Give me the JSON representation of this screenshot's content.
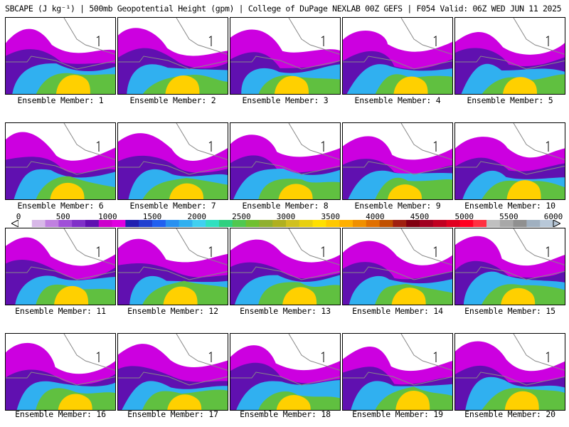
{
  "title": "SBCAPE (J kg⁻¹) | 500mb Geopotential Height (gpm) | College of DuPage NEXLAB 00Z GEFS | F054 Valid: 06Z WED JUN 11 2025",
  "panels": [
    {
      "label": "Ensemble Member: 1"
    },
    {
      "label": "Ensemble Member: 2"
    },
    {
      "label": "Ensemble Member: 3"
    },
    {
      "label": "Ensemble Member: 4"
    },
    {
      "label": "Ensemble Member: 5"
    },
    {
      "label": "Ensemble Member: 6"
    },
    {
      "label": "Ensemble Member: 7"
    },
    {
      "label": "Ensemble Member: 8"
    },
    {
      "label": "Ensemble Member: 9"
    },
    {
      "label": "Ensemble Member: 10"
    },
    {
      "label": "Ensemble Member: 11"
    },
    {
      "label": "Ensemble Member: 12"
    },
    {
      "label": "Ensemble Member: 13"
    },
    {
      "label": "Ensemble Member: 14"
    },
    {
      "label": "Ensemble Member: 15"
    },
    {
      "label": "Ensemble Member: 16"
    },
    {
      "label": "Ensemble Member: 17"
    },
    {
      "label": "Ensemble Member: 18"
    },
    {
      "label": "Ensemble Member: 19"
    },
    {
      "label": "Ensemble Member: 20"
    }
  ],
  "colorbar": {
    "ticks": [
      "0",
      "500",
      "1000",
      "1500",
      "2000",
      "2500",
      "3000",
      "3500",
      "4000",
      "4500",
      "5000",
      "5500",
      "6000"
    ],
    "colors": [
      "#ffffff",
      "#d8b8e8",
      "#c080e0",
      "#a050d8",
      "#8030c8",
      "#6010b0",
      "#cc00cc",
      "#e000e0",
      "#2020b0",
      "#2040d0",
      "#2060f0",
      "#2890f0",
      "#30b0f0",
      "#40d0f0",
      "#30e0c0",
      "#30d080",
      "#50c850",
      "#70c030",
      "#90b030",
      "#b0b020",
      "#d0c020",
      "#e8d010",
      "#ffe000",
      "#ffc800",
      "#ffb000",
      "#f09000",
      "#e07000",
      "#c05000",
      "#a02010",
      "#800010",
      "#a00020",
      "#c00020",
      "#e00020",
      "#ff0020",
      "#ff3040",
      "#c0c0c0",
      "#a8a8a8",
      "#909090",
      "#a0b0c0",
      "#b8c8d8"
    ]
  },
  "colors": {
    "land": "#ffffff",
    "border": "#888888",
    "frame": "#000000"
  }
}
